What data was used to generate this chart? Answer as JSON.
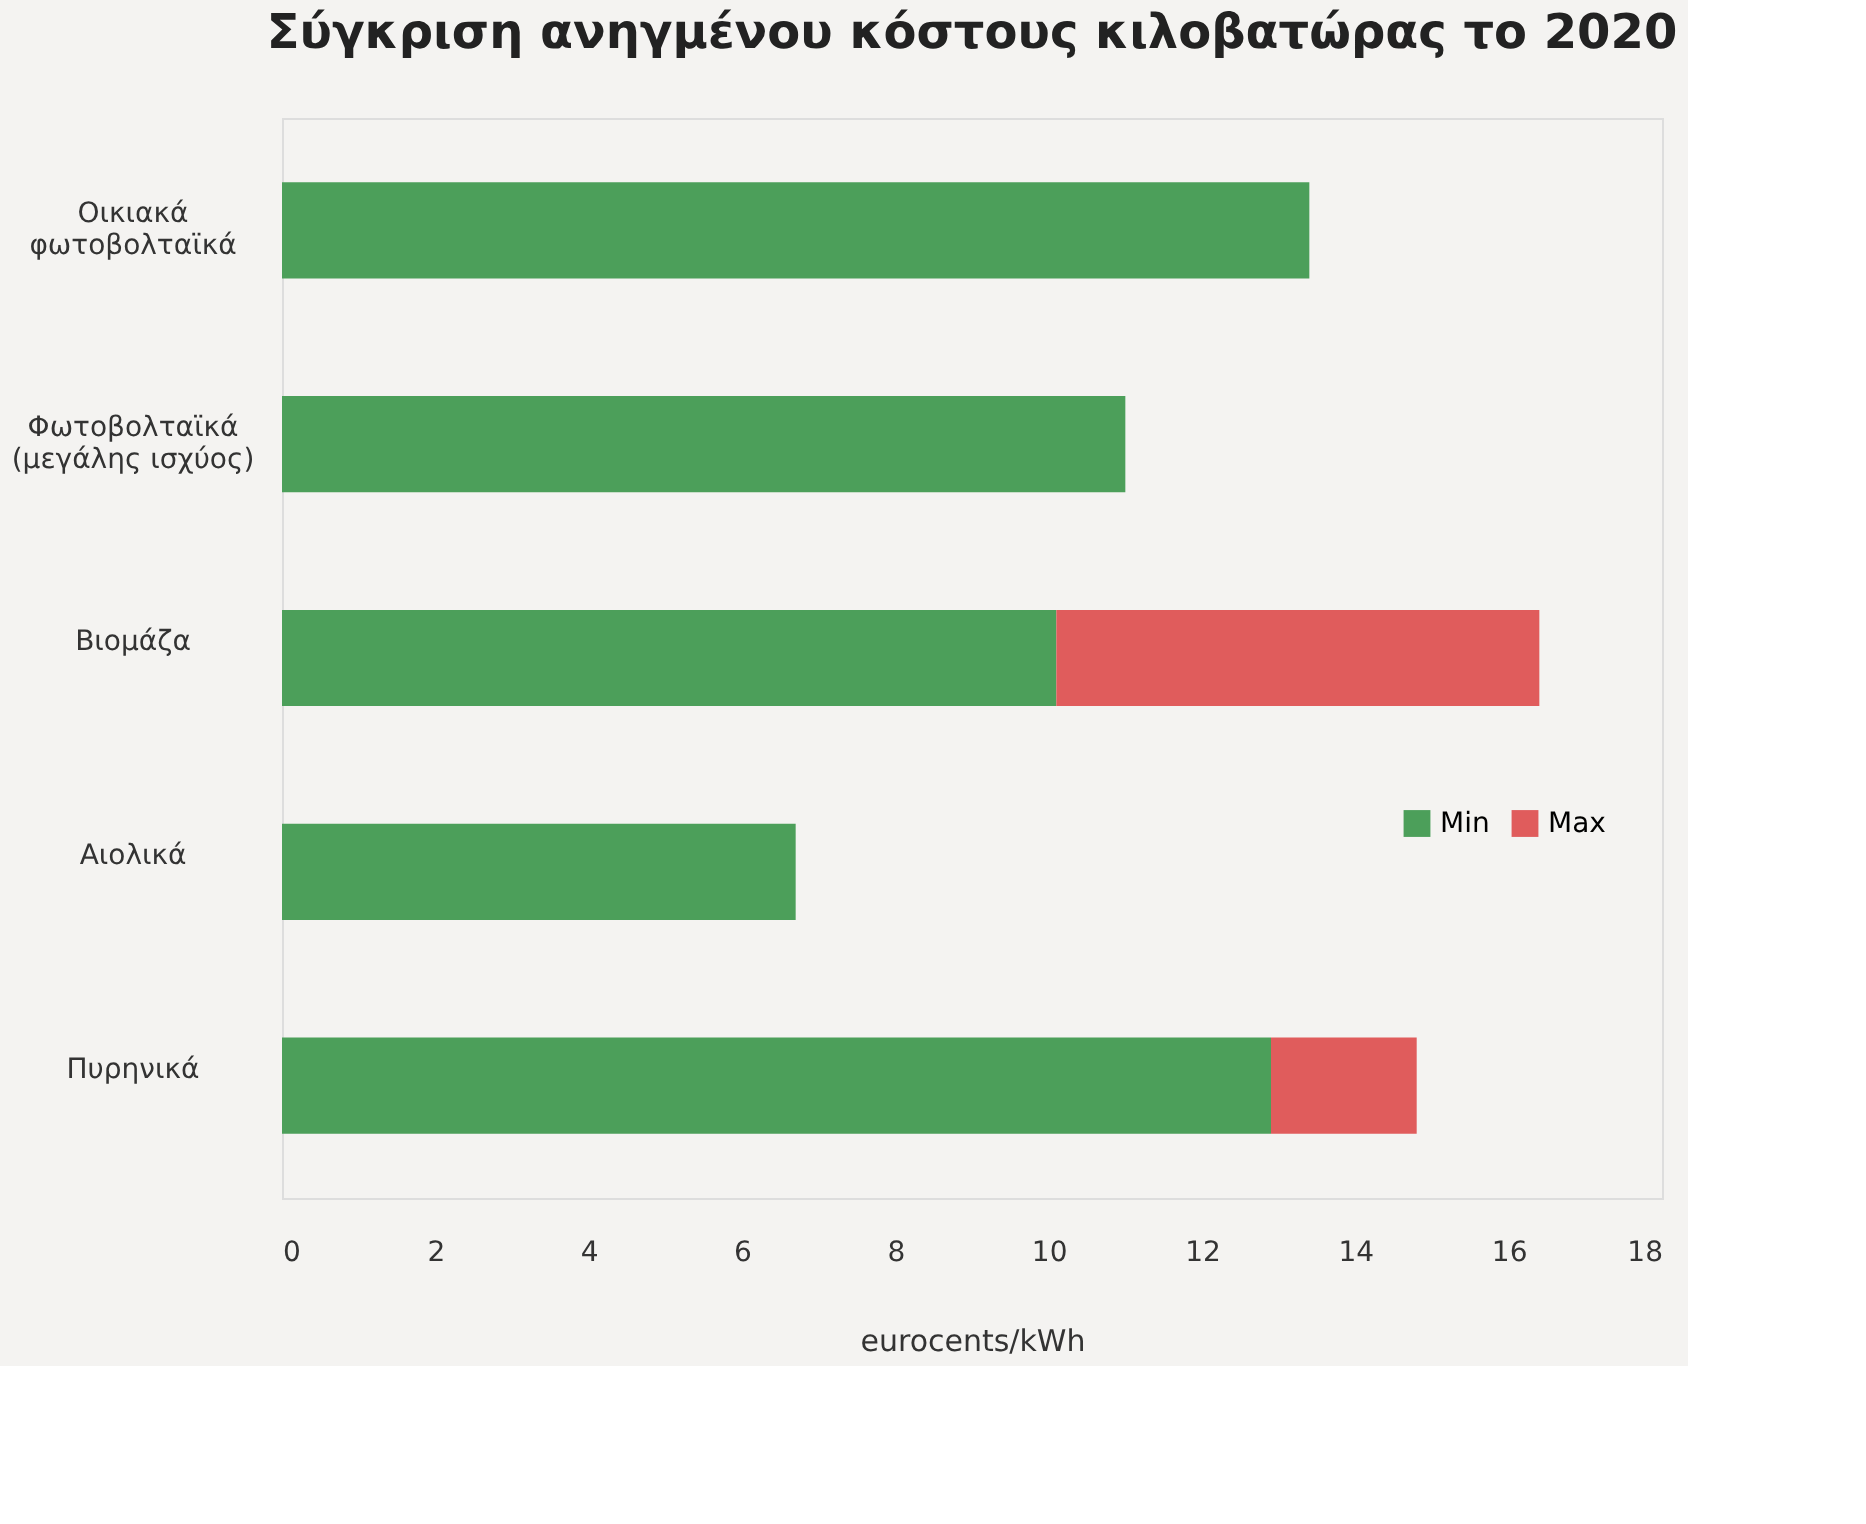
{
  "chart_data": {
    "type": "bar",
    "orientation": "horizontal",
    "stacked": true,
    "title": "Σύγκριση ανηγμένου κόστους κιλοβατώρας το 2020",
    "xlabel": "eurocents/kWh",
    "categories": [
      "Οικιακά φωτοβολταϊκά",
      "Φωτοβολταϊκά (μεγάλης ισχύος)",
      "Βιομάζα",
      "Αιολικά",
      "Πυρηνικά"
    ],
    "series": [
      {
        "name": "Min",
        "color": "#4c9f5a",
        "values": [
          13.4,
          11.0,
          10.1,
          6.7,
          12.9
        ]
      },
      {
        "name": "Max",
        "color": "#e05c5c",
        "values": [
          null,
          null,
          6.3,
          null,
          1.9
        ]
      }
    ],
    "xlim": [
      0,
      18
    ],
    "xticks": [
      0,
      2,
      4,
      6,
      8,
      10,
      12,
      14,
      16,
      18
    ],
    "grid": false,
    "legend": "right"
  }
}
